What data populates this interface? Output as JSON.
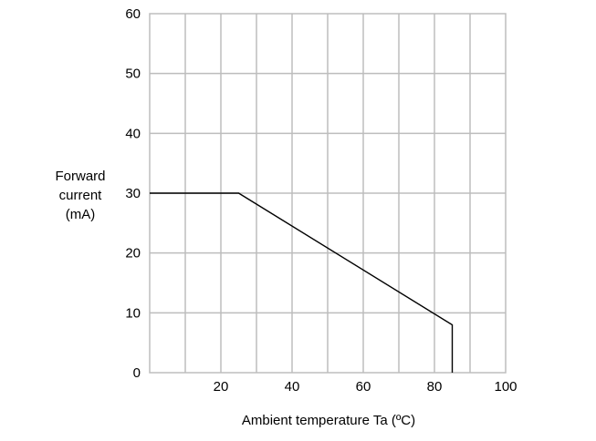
{
  "chart_data": {
    "type": "line",
    "title": "",
    "xlabel": "Ambient temperature Ta (ºC)",
    "ylabel_lines": [
      "Forward",
      "current",
      "(mA)"
    ],
    "xlim": [
      0,
      100
    ],
    "ylim": [
      0,
      60
    ],
    "x_grid_step": 10,
    "y_grid_step": 10,
    "x_tick_labels": [
      20,
      40,
      60,
      80,
      100
    ],
    "y_tick_labels": [
      0,
      10,
      20,
      30,
      40,
      50,
      60
    ],
    "grid": true,
    "legend": "none",
    "series": [
      {
        "color": "#000000",
        "points": [
          [
            0,
            30
          ],
          [
            25,
            30
          ],
          [
            85,
            8
          ],
          [
            85,
            0
          ]
        ]
      }
    ]
  }
}
